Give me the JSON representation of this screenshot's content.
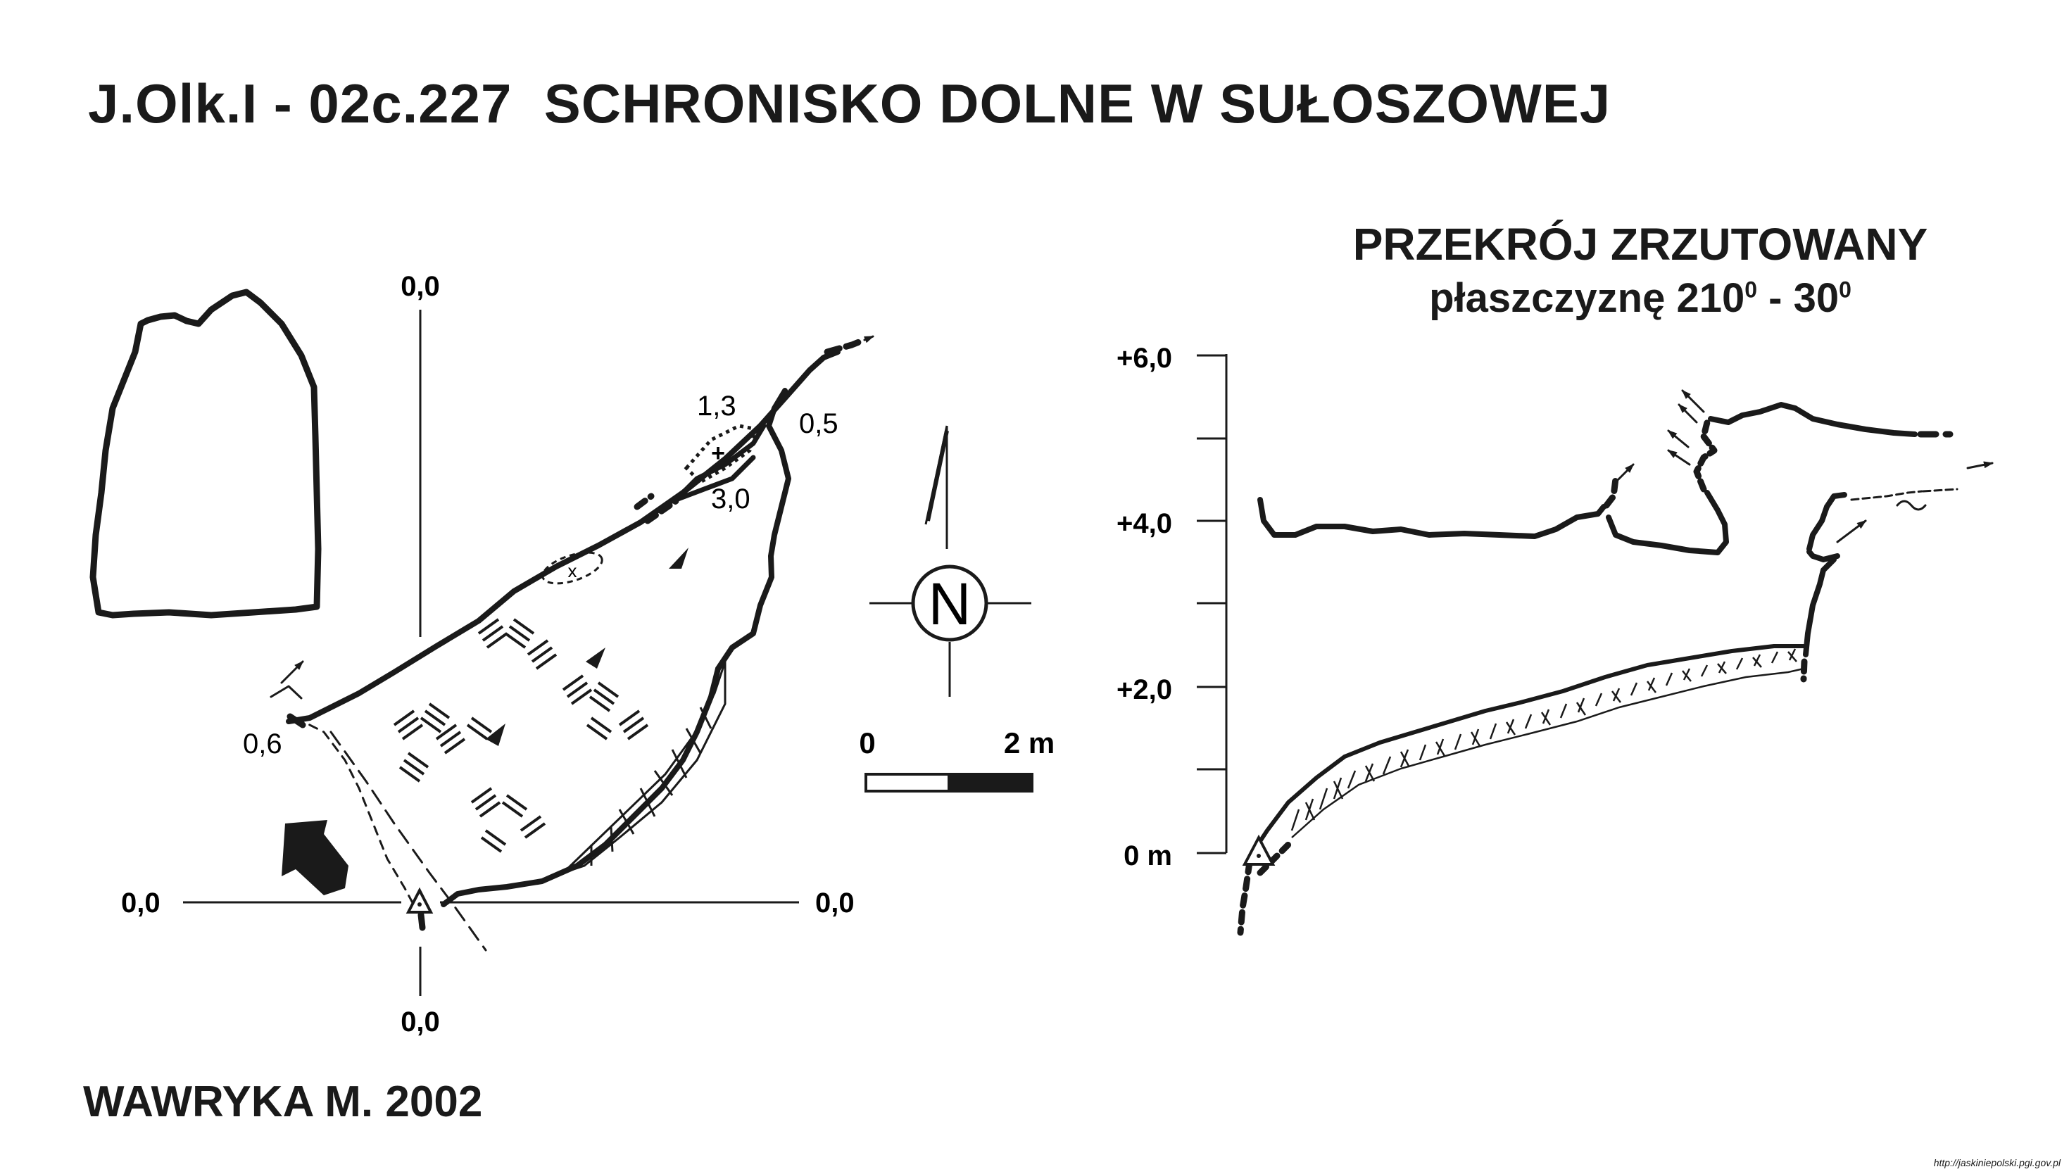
{
  "title": {
    "code": "J.Olk.I - 02c.227",
    "name": "SCHRONISKO DOLNE W SUŁOSZOWEJ"
  },
  "plan": {
    "axis_labels": {
      "top": "0,0",
      "bottom": "0,0",
      "left": "0,0",
      "right": "0,0"
    },
    "measurements": [
      "1,3",
      "0,5",
      "3,0",
      "0,6"
    ]
  },
  "north_arrow": {
    "label": "N"
  },
  "scale_bar": {
    "start_label": "0",
    "end_label": "2 m"
  },
  "cross_section": {
    "title_line1": "PRZEKRÓJ ZRZUTOWANY",
    "title_line2_a": "płaszczyznę 210",
    "title_line2_sup1": "0",
    "title_line2_b": " - 30",
    "title_line2_sup2": "0",
    "elevation_labels": [
      "+6,0",
      "+4,0",
      "+2,0",
      "0 m"
    ]
  },
  "author": "WAWRYKA M. 2002",
  "source_url": "http://jaskiniepolski.pgi.gov.pl"
}
